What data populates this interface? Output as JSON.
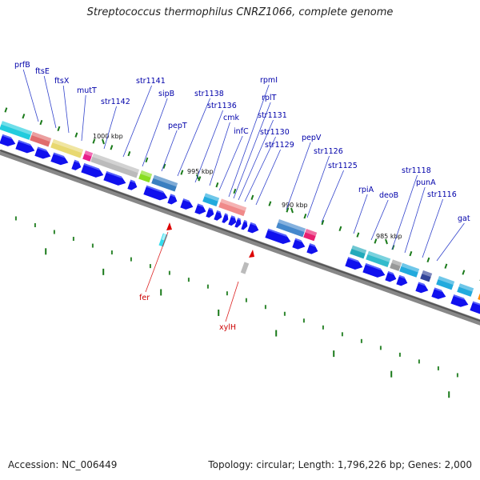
{
  "title": "Streptococcus thermophilus CNRZ1066, complete genome",
  "footer": {
    "accession": "Accession: NC_006449",
    "topology": "Topology: circular; Length: 1,796,226 bp; Genes: 2,000"
  },
  "colors": {
    "cds_arrow": "#1010ee",
    "label_blue": "#0000aa",
    "label_red": "#cc0000",
    "tick_green": "#1a7a1a",
    "backbone": "#555555"
  },
  "scale_labels": [
    "1000 kbp",
    "995 kbp",
    "990 kbp",
    "985 kbp"
  ],
  "gene_labels": [
    "prfB",
    "ftsE",
    "ftsX",
    "mutT",
    "str1142",
    "str1141",
    "sipB",
    "pepT",
    "str1138",
    "str1136",
    "cmk",
    "infC",
    "rpmI",
    "rplT",
    "str1131",
    "str1130",
    "str1129",
    "pepV",
    "str1126",
    "str1125",
    "rpiA",
    "deoB",
    "str1118",
    "punA",
    "str1116",
    "gat"
  ],
  "inner_labels": [
    "fer",
    "xylH"
  ]
}
